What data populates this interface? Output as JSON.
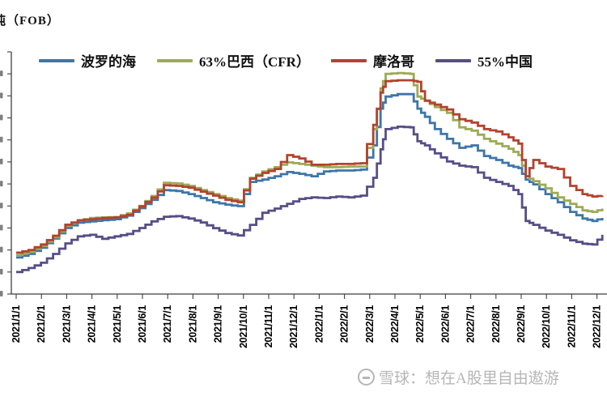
{
  "title": {
    "text": "吨（FOB）",
    "note": "title cropped at left edge of screenshot"
  },
  "legend": [
    {
      "label": "波罗的海",
      "color": "#3E76A8"
    },
    {
      "label": "63%巴西（CFR）",
      "color": "#9DAB55"
    },
    {
      "label": "摩洛哥",
      "color": "#B2432F"
    },
    {
      "label": "55%中国",
      "color": "#574E86"
    }
  ],
  "watermark": {
    "icon": "xueqiu-logo",
    "text": "雪球：想在A股里自由遨游"
  },
  "chart_data": {
    "type": "line",
    "title": "吨（FOB）",
    "xlabel": "",
    "ylabel": "",
    "x_unit": "months since 2021/1/1 (weekly stepped price series)",
    "x_tick_labels": [
      "2021/1/1",
      "2021/2/1",
      "2021/3/1",
      "2021/4/1",
      "2021/5/1",
      "2021/6/1",
      "2021/7/1",
      "2021/8/1",
      "2021/9/1",
      "2021/10/1",
      "2021/11/1",
      "2021/12/1",
      "2022/1/1",
      "2022/2/1",
      "2022/3/1",
      "2022/4/1",
      "2022/5/1",
      "2022/6/1",
      "2022/7/1",
      "2022/8/1",
      "2022/9/1",
      "2022/10/1",
      "2022/11/1",
      "2022/12/1"
    ],
    "ylim": [
      200,
      1300
    ],
    "y_tick_interval": 100,
    "y_axis_labels_visible": false,
    "grid": false,
    "legend_position": "top",
    "x": [
      0,
      0.49,
      0.98,
      1.46,
      1.95,
      2.44,
      2.93,
      3.41,
      3.9,
      4.39,
      4.88,
      5.36,
      5.85,
      6.34,
      6.83,
      7.31,
      7.8,
      8.29,
      8.78,
      9.26,
      9.75,
      10.24,
      10.73,
      11.21,
      11.7,
      12.19,
      12.68,
      13.16,
      13.65,
      14.14,
      14.43,
      14.63,
      15.11,
      15.6,
      15.89,
      16.19,
      16.58,
      17.06,
      17.55,
      18.04,
      18.53,
      19.01,
      19.5,
      19.89,
      20.18,
      20.48,
      20.96,
      21.45,
      21.94,
      22.43,
      22.82,
      23.21
    ],
    "series": [
      {
        "name": "波罗的海",
        "color": "#3E76A8",
        "values": [
          366,
          382,
          410,
          452,
          500,
          524,
          530,
          535,
          540,
          556,
          590,
          628,
          672,
          668,
          654,
          636,
          617,
          606,
          599,
          709,
          720,
          735,
          754,
          746,
          735,
          757,
          761,
          761,
          765,
          875,
          1042,
          1097,
          1108,
          1108,
          1042,
          1005,
          949,
          905,
          864,
          875,
          827,
          809,
          783,
          772,
          720,
          698,
          654,
          617,
          573,
          543,
          532,
          546
        ]
      },
      {
        "name": "63%巴西（CFR）",
        "color": "#9DAB55",
        "values": [
          377,
          392,
          418,
          458,
          510,
          535,
          545,
          548,
          550,
          566,
          600,
          645,
          705,
          702,
          691,
          672,
          654,
          636,
          624,
          728,
          757,
          776,
          798,
          791,
          783,
          776,
          776,
          779,
          779,
          949,
          1134,
          1200,
          1204,
          1200,
          1097,
          1078,
          1049,
          1023,
          957,
          942,
          905,
          883,
          860,
          831,
          735,
          713,
          680,
          639,
          610,
          580,
          573,
          588
        ]
      },
      {
        "name": "摩洛哥",
        "color": "#B2432F",
        "values": [
          388,
          400,
          425,
          465,
          515,
          535,
          540,
          545,
          548,
          560,
          598,
          638,
          694,
          691,
          683,
          665,
          647,
          628,
          617,
          724,
          750,
          768,
          831,
          816,
          787,
          787,
          791,
          791,
          794,
          968,
          1115,
          1167,
          1171,
          1171,
          1164,
          1078,
          1060,
          1038,
          994,
          979,
          949,
          938,
          912,
          883,
          735,
          809,
          779,
          768,
          691,
          654,
          643,
          647
        ]
      },
      {
        "name": "55%中国",
        "color": "#574E86",
        "values": [
          300,
          318,
          342,
          382,
          430,
          462,
          469,
          451,
          462,
          473,
          500,
          530,
          551,
          554,
          543,
          525,
          499,
          477,
          466,
          514,
          569,
          588,
          610,
          632,
          639,
          636,
          643,
          639,
          647,
          728,
          857,
          949,
          960,
          957,
          894,
          875,
          839,
          802,
          783,
          776,
          728,
          709,
          691,
          654,
          532,
          514,
          488,
          469,
          444,
          429,
          425,
          469
        ]
      }
    ]
  }
}
